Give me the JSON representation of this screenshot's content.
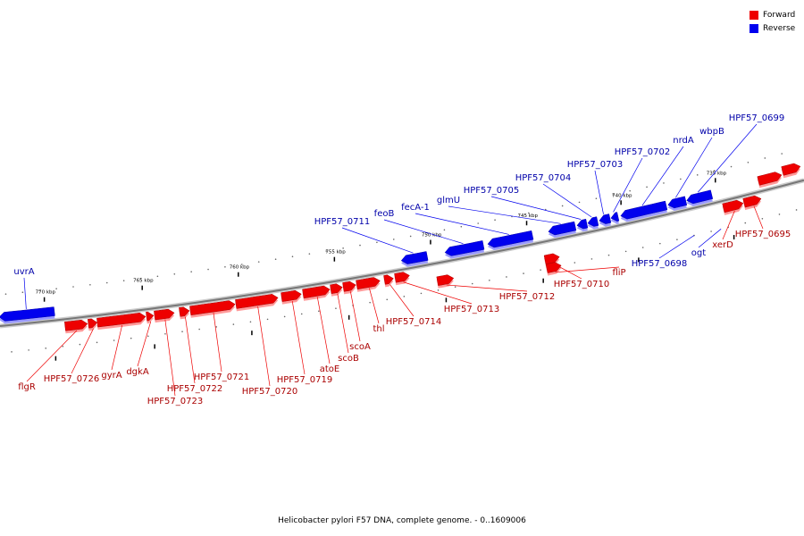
{
  "caption": "Helicobacter pylori F57 DNA, complete genome. - 0..1609006",
  "legend": [
    {
      "label": "Forward",
      "color": "#ee0000"
    },
    {
      "label": "Reverse",
      "color": "#0000ee"
    }
  ],
  "colors": {
    "forward": "#ee0000",
    "reverse": "#0000ee",
    "axis": "#777777"
  },
  "ruler": [
    {
      "label": "770 kbp",
      "kbp": 770
    },
    {
      "label": "765 kbp",
      "kbp": 765
    },
    {
      "label": "760 kbp",
      "kbp": 760
    },
    {
      "label": "755 kbp",
      "kbp": 755
    },
    {
      "label": "750 kbp",
      "kbp": 750
    },
    {
      "label": "745 kbp",
      "kbp": 745
    },
    {
      "label": "740 kbp",
      "kbp": 740
    },
    {
      "label": "735 kbp",
      "kbp": 735
    }
  ],
  "features": [
    {
      "name": "uvrA",
      "strand": "reverse"
    },
    {
      "name": "flgR",
      "strand": "forward"
    },
    {
      "name": "HPF57_0726",
      "strand": "forward"
    },
    {
      "name": "gyrA",
      "strand": "forward"
    },
    {
      "name": "dgkA",
      "strand": "forward"
    },
    {
      "name": "HPF57_0723",
      "strand": "forward"
    },
    {
      "name": "HPF57_0722",
      "strand": "forward"
    },
    {
      "name": "HPF57_0721",
      "strand": "forward"
    },
    {
      "name": "HPF57_0720",
      "strand": "forward"
    },
    {
      "name": "HPF57_0719",
      "strand": "forward"
    },
    {
      "name": "atoE",
      "strand": "forward"
    },
    {
      "name": "scoB",
      "strand": "forward"
    },
    {
      "name": "scoA",
      "strand": "forward"
    },
    {
      "name": "thl",
      "strand": "forward"
    },
    {
      "name": "HPF57_0714",
      "strand": "forward"
    },
    {
      "name": "HPF57_0713",
      "strand": "forward"
    },
    {
      "name": "HPF57_0712",
      "strand": "forward"
    },
    {
      "name": "HPF57_0711",
      "strand": "reverse"
    },
    {
      "name": "HPF57_0710",
      "strand": "forward"
    },
    {
      "name": "feoB",
      "strand": "reverse"
    },
    {
      "name": "fecA-1",
      "strand": "reverse"
    },
    {
      "name": "glmU",
      "strand": "reverse"
    },
    {
      "name": "HPF57_0705",
      "strand": "reverse"
    },
    {
      "name": "HPF57_0704",
      "strand": "reverse"
    },
    {
      "name": "fliP",
      "strand": "forward"
    },
    {
      "name": "HPF57_0703",
      "strand": "reverse"
    },
    {
      "name": "HPF57_0702",
      "strand": "reverse"
    },
    {
      "name": "nrdA",
      "strand": "reverse"
    },
    {
      "name": "wbpB",
      "strand": "reverse"
    },
    {
      "name": "HPF57_0699",
      "strand": "reverse"
    },
    {
      "name": "HPF57_0698",
      "strand": "reverse"
    },
    {
      "name": "ogt",
      "strand": "reverse"
    },
    {
      "name": "xerD",
      "strand": "forward"
    },
    {
      "name": "HPF57_0695",
      "strand": "forward"
    }
  ]
}
